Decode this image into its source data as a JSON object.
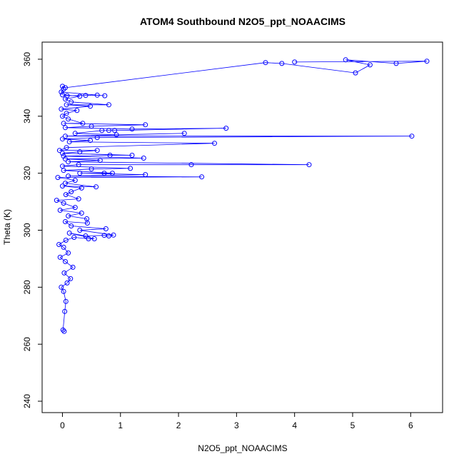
{
  "chart_data": {
    "type": "line",
    "title": "ATOM4 Southbound N2O5_ppt_NOAACIMS",
    "xlabel": "N2O5_ppt_NOAACIMS",
    "ylabel": "Theta (K)",
    "xlim": [
      -0.35,
      6.55
    ],
    "ylim": [
      236,
      366
    ],
    "x_ticks": [
      0,
      1,
      2,
      3,
      4,
      5,
      6
    ],
    "y_ticks": [
      240,
      260,
      280,
      300,
      320,
      340,
      360
    ],
    "grid": false,
    "markers": "open-circle",
    "color": "#0000ff",
    "series": [
      {
        "points": [
          [
            0.03,
            264.5
          ],
          [
            0.01,
            265.0
          ],
          [
            0.04,
            271.5
          ],
          [
            0.06,
            275.0
          ],
          [
            0.02,
            278.5
          ],
          [
            -0.02,
            280.0
          ],
          [
            0.08,
            281.5
          ],
          [
            0.14,
            283.0
          ],
          [
            0.03,
            285.0
          ],
          [
            0.18,
            287.0
          ],
          [
            0.05,
            289.0
          ],
          [
            -0.04,
            290.5
          ],
          [
            0.1,
            292.0
          ],
          [
            0.02,
            294.0
          ],
          [
            -0.06,
            295.0
          ],
          [
            0.06,
            296.5
          ],
          [
            0.2,
            297.5
          ],
          [
            0.45,
            297.0
          ],
          [
            0.55,
            297.0
          ],
          [
            0.12,
            299.0
          ],
          [
            0.4,
            298.0
          ],
          [
            0.72,
            298.2
          ],
          [
            0.8,
            298.0
          ],
          [
            0.88,
            298.3
          ],
          [
            0.3,
            300.0
          ],
          [
            0.75,
            300.5
          ],
          [
            0.15,
            301.5
          ],
          [
            0.05,
            303.0
          ],
          [
            0.43,
            302.5
          ],
          [
            0.42,
            304.0
          ],
          [
            0.1,
            305.0
          ],
          [
            0.33,
            306.0
          ],
          [
            -0.04,
            307.0
          ],
          [
            0.22,
            308.0
          ],
          [
            0.02,
            309.5
          ],
          [
            -0.1,
            310.5
          ],
          [
            0.28,
            311.0
          ],
          [
            0.06,
            312.5
          ],
          [
            0.15,
            313.5
          ],
          [
            0.33,
            314.8
          ],
          [
            0.0,
            315.5
          ],
          [
            0.58,
            315.2
          ],
          [
            0.05,
            316.5
          ],
          [
            0.22,
            317.5
          ],
          [
            -0.08,
            318.5
          ],
          [
            2.4,
            318.7
          ],
          [
            0.1,
            319.0
          ],
          [
            1.43,
            319.5
          ],
          [
            0.3,
            320.0
          ],
          [
            0.72,
            320.0
          ],
          [
            0.86,
            320.0
          ],
          [
            0.02,
            321.0
          ],
          [
            0.5,
            321.5
          ],
          [
            1.17,
            321.7
          ],
          [
            0.0,
            322.5
          ],
          [
            0.28,
            323.0
          ],
          [
            2.22,
            323.0
          ],
          [
            4.25,
            323.0
          ],
          [
            0.1,
            324.0
          ],
          [
            0.65,
            324.5
          ],
          [
            0.05,
            325.0
          ],
          [
            1.4,
            325.3
          ],
          [
            0.02,
            326.0
          ],
          [
            0.82,
            326.3
          ],
          [
            1.2,
            326.3
          ],
          [
            0.0,
            327.0
          ],
          [
            0.3,
            327.5
          ],
          [
            0.6,
            328.0
          ],
          [
            -0.05,
            328.0
          ],
          [
            0.07,
            329.0
          ],
          [
            2.62,
            330.5
          ],
          [
            0.12,
            331.0
          ],
          [
            0.48,
            331.5
          ],
          [
            0.0,
            332.0
          ],
          [
            0.6,
            332.5
          ],
          [
            6.02,
            333.0
          ],
          [
            0.05,
            333.0
          ],
          [
            2.1,
            334.0
          ],
          [
            0.93,
            333.5
          ],
          [
            0.22,
            334.0
          ],
          [
            0.68,
            335.0
          ],
          [
            0.8,
            335.0
          ],
          [
            0.9,
            335.0
          ],
          [
            2.82,
            335.8
          ],
          [
            1.2,
            335.5
          ],
          [
            0.05,
            336.0
          ],
          [
            0.5,
            336.5
          ],
          [
            1.43,
            337.0
          ],
          [
            0.02,
            337.5
          ],
          [
            0.35,
            337.5
          ],
          [
            0.1,
            339.0
          ],
          [
            0.0,
            340.0
          ],
          [
            0.07,
            341.0
          ],
          [
            0.25,
            342.0
          ],
          [
            -0.02,
            342.5
          ],
          [
            0.48,
            343.5
          ],
          [
            0.07,
            344.0
          ],
          [
            0.8,
            344.0
          ],
          [
            0.15,
            345.0
          ],
          [
            0.05,
            346.0
          ],
          [
            0.3,
            347.0
          ],
          [
            0.0,
            347.5
          ],
          [
            0.08,
            347.2
          ],
          [
            0.4,
            347.3
          ],
          [
            0.6,
            347.4
          ],
          [
            0.73,
            347.2
          ],
          [
            -0.02,
            348.5
          ],
          [
            0.02,
            349.5
          ],
          [
            0.0,
            350.5
          ],
          [
            0.05,
            350.0
          ],
          [
            3.5,
            358.8
          ],
          [
            3.78,
            358.5
          ],
          [
            5.05,
            355.2
          ],
          [
            5.3,
            358.0
          ],
          [
            4.88,
            359.8
          ],
          [
            5.75,
            358.5
          ],
          [
            6.28,
            359.3
          ],
          [
            4.0,
            359.0
          ]
        ]
      }
    ]
  }
}
